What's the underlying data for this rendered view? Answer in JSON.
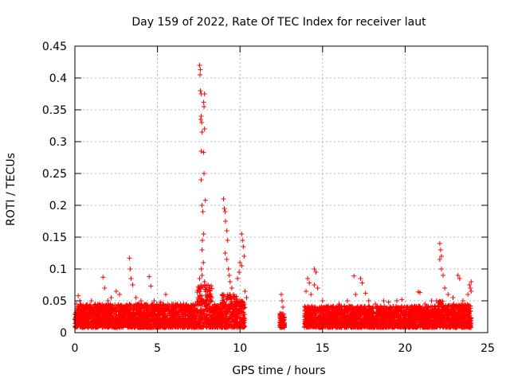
{
  "chart_data": {
    "type": "scatter",
    "title": "Day 159 of 2022, Rate Of TEC Index for receiver laut",
    "xlabel": "GPS time / hours",
    "ylabel": "ROTI / TECUs",
    "xlim": [
      0,
      25
    ],
    "ylim": [
      0,
      0.45
    ],
    "x_ticks": [
      "0",
      "5",
      "10",
      "15",
      "20",
      "25"
    ],
    "y_ticks": [
      "0",
      "0.05",
      "0.1",
      "0.15",
      "0.2",
      "0.25",
      "0.3",
      "0.35",
      "0.4",
      "0.45"
    ],
    "grid": true,
    "marker": "+",
    "color": "#ff0000",
    "series": [
      {
        "name": "ROTI",
        "points": [
          [
            0.1,
            0.045
          ],
          [
            0.2,
            0.058
          ],
          [
            0.3,
            0.05
          ],
          [
            0.5,
            0.04
          ],
          [
            0.8,
            0.03
          ],
          [
            1.0,
            0.05
          ],
          [
            1.3,
            0.04
          ],
          [
            1.7,
            0.087
          ],
          [
            1.8,
            0.07
          ],
          [
            2.0,
            0.05
          ],
          [
            2.2,
            0.055
          ],
          [
            2.5,
            0.065
          ],
          [
            2.7,
            0.06
          ],
          [
            3.0,
            0.04
          ],
          [
            3.3,
            0.117
          ],
          [
            3.35,
            0.1
          ],
          [
            3.4,
            0.085
          ],
          [
            3.5,
            0.075
          ],
          [
            3.7,
            0.055
          ],
          [
            4.0,
            0.05
          ],
          [
            4.3,
            0.045
          ],
          [
            4.5,
            0.088
          ],
          [
            4.6,
            0.073
          ],
          [
            4.8,
            0.05
          ],
          [
            5.2,
            0.048
          ],
          [
            5.5,
            0.06
          ],
          [
            5.8,
            0.04
          ],
          [
            6.2,
            0.045
          ],
          [
            6.6,
            0.035
          ],
          [
            7.0,
            0.04
          ],
          [
            7.3,
            0.045
          ],
          [
            7.45,
            0.055
          ],
          [
            7.5,
            0.07
          ],
          [
            7.55,
            0.085
          ],
          [
            7.55,
            0.42
          ],
          [
            7.6,
            0.413
          ],
          [
            7.58,
            0.405
          ],
          [
            7.6,
            0.38
          ],
          [
            7.65,
            0.375
          ],
          [
            7.85,
            0.375
          ],
          [
            7.8,
            0.362
          ],
          [
            7.82,
            0.355
          ],
          [
            7.65,
            0.34
          ],
          [
            7.62,
            0.335
          ],
          [
            7.68,
            0.33
          ],
          [
            7.7,
            0.315
          ],
          [
            7.85,
            0.32
          ],
          [
            7.65,
            0.285
          ],
          [
            7.8,
            0.283
          ],
          [
            7.82,
            0.25
          ],
          [
            7.65,
            0.24
          ],
          [
            7.9,
            0.208
          ],
          [
            7.7,
            0.2
          ],
          [
            7.75,
            0.19
          ],
          [
            7.8,
            0.155
          ],
          [
            7.72,
            0.145
          ],
          [
            7.7,
            0.13
          ],
          [
            7.78,
            0.11
          ],
          [
            7.66,
            0.1
          ],
          [
            7.7,
            0.09
          ],
          [
            7.85,
            0.08
          ],
          [
            7.9,
            0.068
          ],
          [
            8.3,
            0.055
          ],
          [
            8.5,
            0.04
          ],
          [
            8.8,
            0.045
          ],
          [
            9.0,
            0.21
          ],
          [
            9.05,
            0.195
          ],
          [
            9.1,
            0.19
          ],
          [
            9.12,
            0.175
          ],
          [
            9.2,
            0.16
          ],
          [
            9.25,
            0.145
          ],
          [
            9.1,
            0.125
          ],
          [
            9.2,
            0.115
          ],
          [
            9.3,
            0.1
          ],
          [
            9.35,
            0.09
          ],
          [
            9.4,
            0.08
          ],
          [
            9.5,
            0.07
          ],
          [
            9.6,
            0.06
          ],
          [
            10.1,
            0.155
          ],
          [
            10.15,
            0.145
          ],
          [
            10.2,
            0.135
          ],
          [
            10.25,
            0.12
          ],
          [
            10.0,
            0.11
          ],
          [
            10.1,
            0.105
          ],
          [
            9.85,
            0.085
          ],
          [
            9.95,
            0.095
          ],
          [
            10.3,
            0.065
          ],
          [
            10.4,
            0.055
          ],
          [
            12.5,
            0.06
          ],
          [
            12.55,
            0.05
          ],
          [
            12.6,
            0.04
          ],
          [
            12.5,
            0.03
          ],
          [
            12.6,
            0.02
          ],
          [
            12.55,
            0.012
          ],
          [
            14.0,
            0.065
          ],
          [
            14.1,
            0.085
          ],
          [
            14.2,
            0.078
          ],
          [
            14.3,
            0.06
          ],
          [
            14.5,
            0.1
          ],
          [
            14.6,
            0.095
          ],
          [
            14.5,
            0.075
          ],
          [
            14.7,
            0.07
          ],
          [
            15.0,
            0.05
          ],
          [
            15.5,
            0.04
          ],
          [
            16.0,
            0.045
          ],
          [
            16.5,
            0.05
          ],
          [
            16.9,
            0.089
          ],
          [
            17.0,
            0.06
          ],
          [
            17.3,
            0.085
          ],
          [
            17.4,
            0.078
          ],
          [
            17.6,
            0.062
          ],
          [
            17.8,
            0.05
          ],
          [
            18.2,
            0.045
          ],
          [
            18.7,
            0.05
          ],
          [
            19.0,
            0.048
          ],
          [
            19.5,
            0.05
          ],
          [
            19.8,
            0.052
          ],
          [
            20.3,
            0.04
          ],
          [
            20.8,
            0.064
          ],
          [
            20.9,
            0.063
          ],
          [
            21.2,
            0.045
          ],
          [
            21.6,
            0.05
          ],
          [
            21.9,
            0.05
          ],
          [
            22.1,
            0.14
          ],
          [
            22.15,
            0.13
          ],
          [
            22.2,
            0.12
          ],
          [
            22.1,
            0.115
          ],
          [
            22.2,
            0.1
          ],
          [
            22.3,
            0.09
          ],
          [
            22.4,
            0.07
          ],
          [
            22.6,
            0.06
          ],
          [
            22.9,
            0.055
          ],
          [
            23.2,
            0.09
          ],
          [
            23.3,
            0.085
          ],
          [
            23.5,
            0.05
          ],
          [
            23.8,
            0.06
          ],
          [
            23.9,
            0.075
          ],
          [
            23.95,
            0.07
          ],
          [
            24.0,
            0.08
          ],
          [
            24.0,
            0.065
          ]
        ]
      }
    ],
    "noise_segments": [
      {
        "x_range": [
          0.0,
          7.4
        ],
        "y_max": 0.045
      },
      {
        "x_range": [
          7.4,
          8.3
        ],
        "y_max": 0.075
      },
      {
        "x_range": [
          8.3,
          8.9
        ],
        "y_max": 0.045
      },
      {
        "x_range": [
          8.9,
          9.8
        ],
        "y_max": 0.06
      },
      {
        "x_range": [
          9.8,
          10.3
        ],
        "y_max": 0.05
      },
      {
        "x_range": [
          12.4,
          12.7
        ],
        "y_max": 0.03
      },
      {
        "x_range": [
          13.9,
          22.0
        ],
        "y_max": 0.042
      },
      {
        "x_range": [
          22.0,
          22.6
        ],
        "y_max": 0.05
      },
      {
        "x_range": [
          22.6,
          24.0
        ],
        "y_max": 0.045
      }
    ]
  }
}
